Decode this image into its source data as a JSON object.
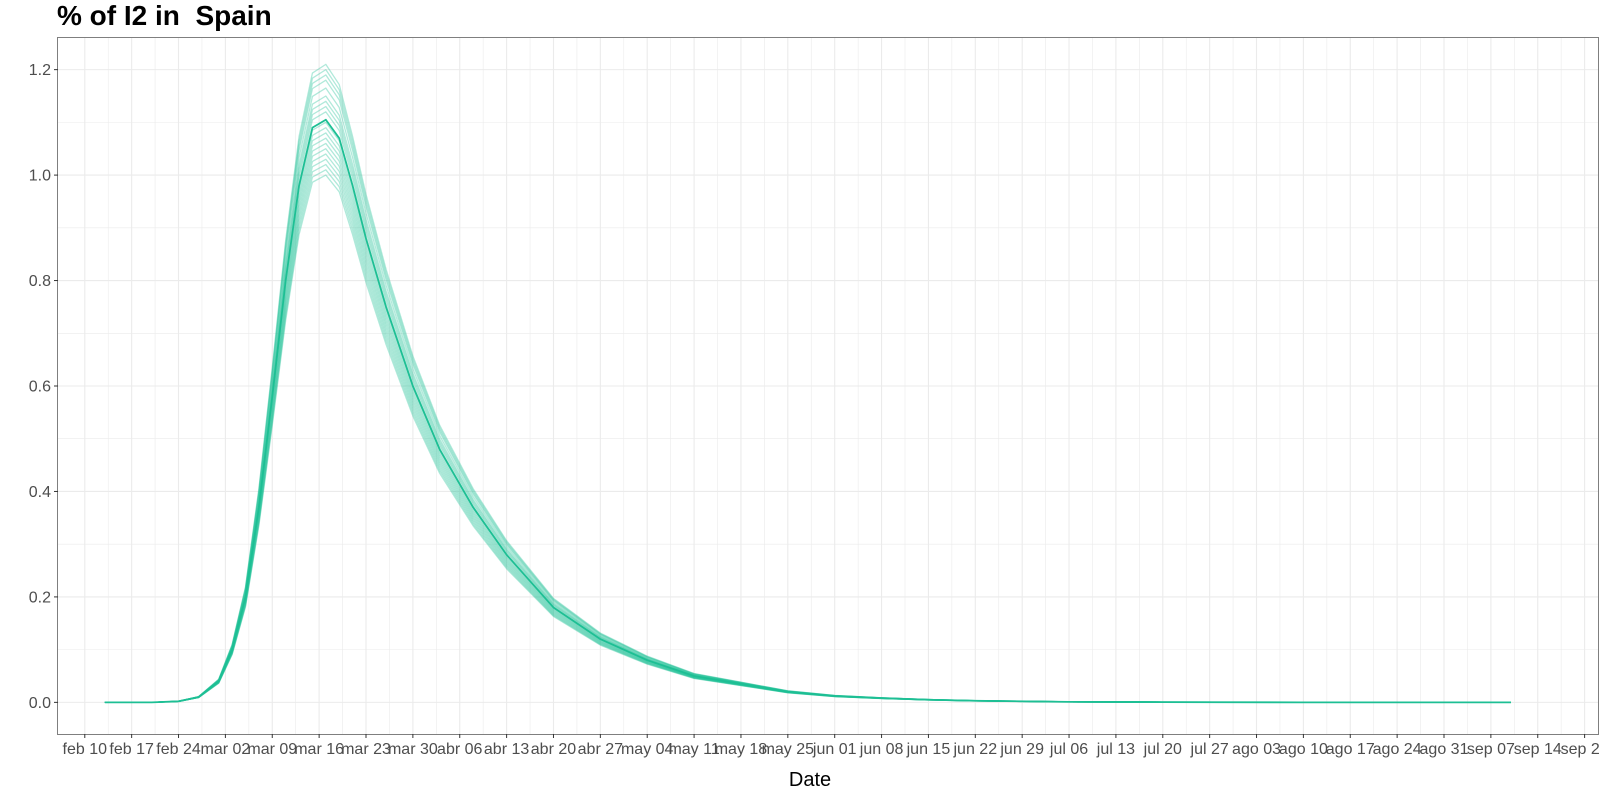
{
  "chart_data": {
    "type": "line",
    "title": "% of I2 in  Spain",
    "xlabel": "Date",
    "ylabel": "",
    "x_axis_type": "date",
    "xlim": [
      "2020-02-06",
      "2020-09-23"
    ],
    "ylim": [
      -0.06,
      1.26
    ],
    "yticks": [
      0.0,
      0.2,
      0.4,
      0.6,
      0.8,
      1.0,
      1.2
    ],
    "ytick_labels": [
      "0.0",
      "0.2",
      "0.4",
      "0.6",
      "0.8",
      "1.0",
      "1.2"
    ],
    "xticks": [
      {
        "date": "2020-02-10",
        "label": "feb 10"
      },
      {
        "date": "2020-02-17",
        "label": "feb 17"
      },
      {
        "date": "2020-02-24",
        "label": "feb 24"
      },
      {
        "date": "2020-03-02",
        "label": "mar 02"
      },
      {
        "date": "2020-03-09",
        "label": "mar 09"
      },
      {
        "date": "2020-03-16",
        "label": "mar 16"
      },
      {
        "date": "2020-03-23",
        "label": "mar 23"
      },
      {
        "date": "2020-03-30",
        "label": "mar 30"
      },
      {
        "date": "2020-04-06",
        "label": "abr 06"
      },
      {
        "date": "2020-04-13",
        "label": "abr 13"
      },
      {
        "date": "2020-04-20",
        "label": "abr 20"
      },
      {
        "date": "2020-04-27",
        "label": "abr 27"
      },
      {
        "date": "2020-05-04",
        "label": "may 04"
      },
      {
        "date": "2020-05-11",
        "label": "may 11"
      },
      {
        "date": "2020-05-18",
        "label": "may 18"
      },
      {
        "date": "2020-05-25",
        "label": "may 25"
      },
      {
        "date": "2020-06-01",
        "label": "jun 01"
      },
      {
        "date": "2020-06-08",
        "label": "jun 08"
      },
      {
        "date": "2020-06-15",
        "label": "jun 15"
      },
      {
        "date": "2020-06-22",
        "label": "jun 22"
      },
      {
        "date": "2020-06-29",
        "label": "jun 29"
      },
      {
        "date": "2020-07-06",
        "label": "jul 06"
      },
      {
        "date": "2020-07-13",
        "label": "jul 13"
      },
      {
        "date": "2020-07-20",
        "label": "jul 20"
      },
      {
        "date": "2020-07-27",
        "label": "jul 27"
      },
      {
        "date": "2020-08-03",
        "label": "ago 03"
      },
      {
        "date": "2020-08-10",
        "label": "ago 10"
      },
      {
        "date": "2020-08-17",
        "label": "ago 17"
      },
      {
        "date": "2020-08-24",
        "label": "ago 24"
      },
      {
        "date": "2020-08-31",
        "label": "ago 31"
      },
      {
        "date": "2020-09-07",
        "label": "sep 07"
      },
      {
        "date": "2020-09-14",
        "label": "sep 14"
      },
      {
        "date": "2020-09-21",
        "label": "sep 21"
      }
    ],
    "grid": true,
    "legend": "none",
    "colors": {
      "line": "#1dbf94",
      "grid": "#ebebeb",
      "panel_border": "#7f7f7f"
    },
    "series_count": 21,
    "series": [
      {
        "role": "main",
        "x": [
          "2020-02-13",
          "2020-02-20",
          "2020-02-24",
          "2020-02-27",
          "2020-03-01",
          "2020-03-03",
          "2020-03-05",
          "2020-03-07",
          "2020-03-09",
          "2020-03-11",
          "2020-03-13",
          "2020-03-15",
          "2020-03-17",
          "2020-03-19",
          "2020-03-21",
          "2020-03-23",
          "2020-03-26",
          "2020-03-30",
          "2020-04-03",
          "2020-04-08",
          "2020-04-13",
          "2020-04-20",
          "2020-04-27",
          "2020-05-04",
          "2020-05-11",
          "2020-05-18",
          "2020-05-25",
          "2020-06-01",
          "2020-06-08",
          "2020-06-15",
          "2020-06-22",
          "2020-07-06",
          "2020-07-20",
          "2020-08-10",
          "2020-09-10"
        ],
        "y": [
          0,
          0,
          0.002,
          0.01,
          0.04,
          0.1,
          0.2,
          0.37,
          0.58,
          0.8,
          0.98,
          1.09,
          1.105,
          1.07,
          0.98,
          0.88,
          0.75,
          0.6,
          0.48,
          0.37,
          0.28,
          0.18,
          0.12,
          0.08,
          0.05,
          0.035,
          0.02,
          0.012,
          0.008,
          0.005,
          0.003,
          0.001,
          0.0005,
          0,
          0
        ]
      },
      {
        "role": "ensemble",
        "peak": 1.21
      },
      {
        "role": "ensemble",
        "peak": 1.2
      },
      {
        "role": "ensemble",
        "peak": 1.19
      },
      {
        "role": "ensemble",
        "peak": 1.18
      },
      {
        "role": "ensemble",
        "peak": 1.165
      },
      {
        "role": "ensemble",
        "peak": 1.15
      },
      {
        "role": "ensemble",
        "peak": 1.14
      },
      {
        "role": "ensemble",
        "peak": 1.13
      },
      {
        "role": "ensemble",
        "peak": 1.12
      },
      {
        "role": "ensemble",
        "peak": 1.1
      },
      {
        "role": "ensemble",
        "peak": 1.09
      },
      {
        "role": "ensemble",
        "peak": 1.08
      },
      {
        "role": "ensemble",
        "peak": 1.07
      },
      {
        "role": "ensemble",
        "peak": 1.06
      },
      {
        "role": "ensemble",
        "peak": 1.05
      },
      {
        "role": "ensemble",
        "peak": 1.04
      },
      {
        "role": "ensemble",
        "peak": 1.03
      },
      {
        "role": "ensemble",
        "peak": 1.02
      },
      {
        "role": "ensemble",
        "peak": 1.01
      },
      {
        "role": "ensemble",
        "peak": 1.0
      }
    ]
  }
}
